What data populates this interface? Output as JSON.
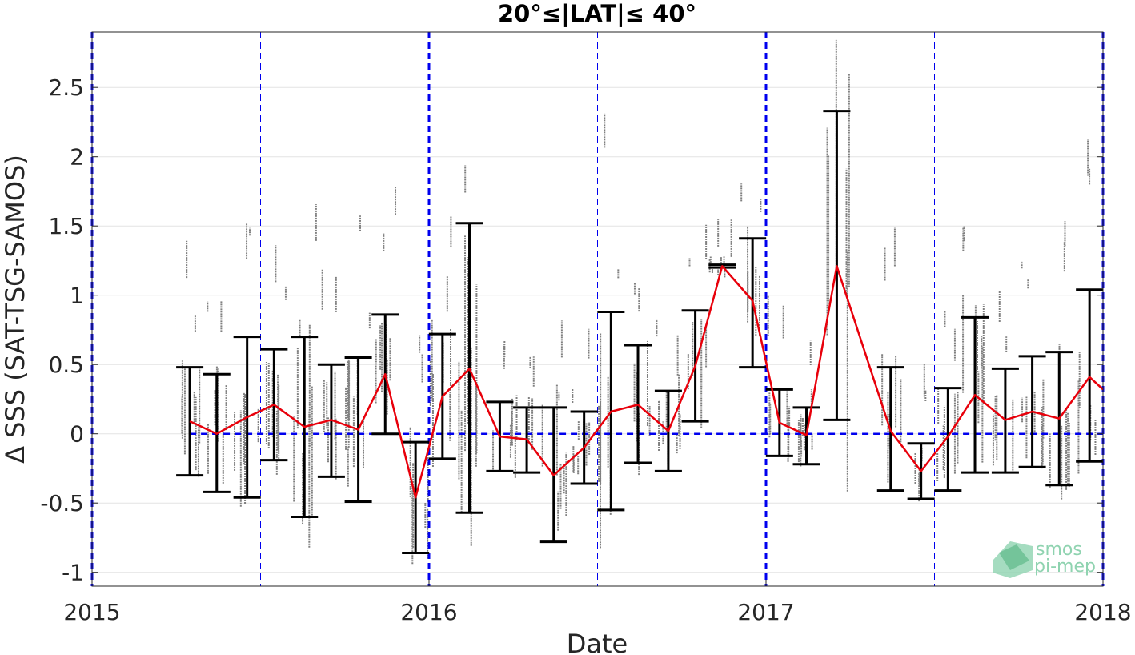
{
  "chart_data": {
    "type": "scatter",
    "title": "20°≤|LAT|≤ 40°",
    "xlabel": "Date",
    "ylabel": "Δ SSS (SAT-TSG-SAMOS)",
    "xlim": [
      2015.0,
      2018.0
    ],
    "ylim": [
      -1.1,
      2.9
    ],
    "xticks": [
      2015,
      2016,
      2017,
      2018
    ],
    "xtick_labels": [
      "2015",
      "2016",
      "2017",
      "2018"
    ],
    "yticks": [
      -1,
      -0.5,
      0,
      0.5,
      1,
      1.5,
      2,
      2.5
    ],
    "ytick_labels": [
      "-1",
      "-0.5",
      "0",
      "0.5",
      "1",
      "1.5",
      "2",
      "2.5"
    ],
    "grid": "horizontal",
    "reference_line": {
      "y": 0,
      "style": "dashed",
      "color": "#0000ee"
    },
    "year_lines": [
      2015.0,
      2016.0,
      2017.0,
      2018.0
    ],
    "half_year_lines": [
      2015.5,
      2016.5,
      2017.5
    ],
    "colors": {
      "mean_line": "#e8000b",
      "errorbar": "#000000",
      "points": "#808080",
      "guides": "#0000ee"
    },
    "monthly_mean": {
      "x": [
        2015.29,
        2015.37,
        2015.46,
        2015.54,
        2015.63,
        2015.71,
        2015.79,
        2015.87,
        2015.96,
        2016.04,
        2016.12,
        2016.21,
        2016.29,
        2016.37,
        2016.46,
        2016.54,
        2016.62,
        2016.71,
        2016.79,
        2016.87,
        2016.96,
        2017.04,
        2017.12,
        2017.21,
        2017.37,
        2017.46,
        2017.54,
        2017.62,
        2017.71,
        2017.79,
        2017.87,
        2017.96,
        2018.0
      ],
      "mean": [
        0.09,
        0.0,
        0.12,
        0.21,
        0.05,
        0.1,
        0.03,
        0.43,
        -0.46,
        0.27,
        0.47,
        -0.02,
        -0.04,
        -0.3,
        -0.1,
        0.16,
        0.21,
        0.02,
        0.49,
        1.21,
        0.96,
        0.08,
        -0.01,
        1.21,
        0.02,
        -0.27,
        -0.02,
        0.28,
        0.1,
        0.16,
        0.11,
        0.41,
        0.32
      ],
      "lower": [
        -0.3,
        -0.42,
        -0.46,
        -0.19,
        -0.6,
        -0.31,
        -0.49,
        0.0,
        -0.86,
        -0.18,
        -0.57,
        -0.27,
        -0.28,
        -0.78,
        -0.36,
        -0.55,
        -0.21,
        -0.27,
        0.09,
        1.2,
        0.48,
        -0.16,
        -0.22,
        0.1,
        -0.41,
        -0.47,
        -0.41,
        -0.28,
        -0.28,
        -0.24,
        -0.37,
        -0.2,
        null
      ],
      "upper": [
        0.48,
        0.43,
        0.7,
        0.61,
        0.7,
        0.5,
        0.55,
        0.86,
        -0.06,
        0.72,
        1.52,
        0.23,
        0.19,
        0.19,
        0.16,
        0.88,
        0.64,
        0.31,
        0.89,
        1.22,
        1.41,
        0.32,
        0.19,
        2.33,
        0.48,
        -0.07,
        0.33,
        0.84,
        0.47,
        0.56,
        0.59,
        1.04,
        null
      ]
    }
  },
  "watermark": {
    "line1": "smos",
    "line2": "pi-mep"
  }
}
